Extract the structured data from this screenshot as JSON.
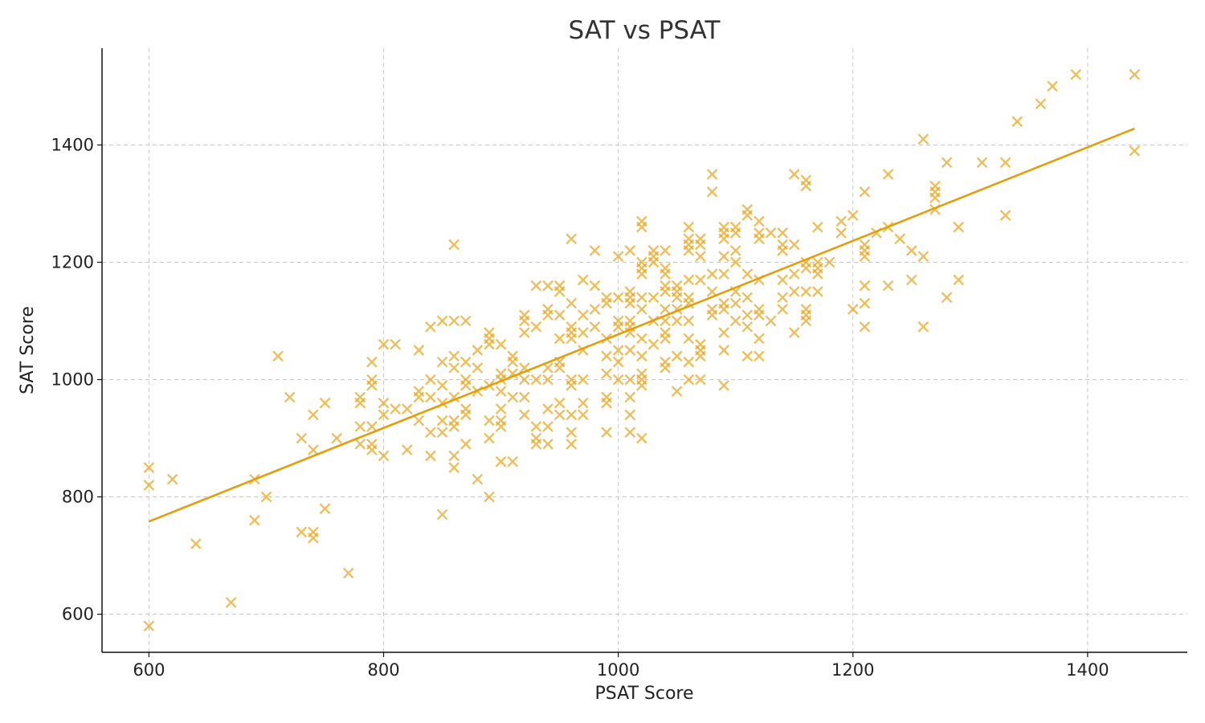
{
  "chart_data": {
    "type": "scatter",
    "title": "SAT vs PSAT",
    "xlabel": "PSAT Score",
    "ylabel": "SAT Score",
    "xlim": [
      560,
      1485
    ],
    "ylim": [
      535,
      1565
    ],
    "xticks": [
      600,
      800,
      1000,
      1200,
      1400
    ],
    "yticks": [
      600,
      800,
      1000,
      1200,
      1400
    ],
    "grid": true,
    "marker": "x",
    "point_color": "#E8A317",
    "line_color": "#E39E0C",
    "trendline": {
      "x": [
        600,
        1440
      ],
      "y": [
        758,
        1428
      ]
    },
    "points": [
      [
        600,
        850
      ],
      [
        600,
        820
      ],
      [
        600,
        580
      ],
      [
        620,
        830
      ],
      [
        640,
        720
      ],
      [
        670,
        620
      ],
      [
        690,
        830
      ],
      [
        690,
        760
      ],
      [
        700,
        800
      ],
      [
        710,
        1040
      ],
      [
        720,
        970
      ],
      [
        730,
        900
      ],
      [
        730,
        740
      ],
      [
        740,
        940
      ],
      [
        740,
        880
      ],
      [
        740,
        740
      ],
      [
        740,
        730
      ],
      [
        750,
        960
      ],
      [
        750,
        780
      ],
      [
        760,
        900
      ],
      [
        770,
        670
      ],
      [
        780,
        970
      ],
      [
        780,
        960
      ],
      [
        780,
        920
      ],
      [
        780,
        890
      ],
      [
        790,
        1030
      ],
      [
        790,
        1000
      ],
      [
        790,
        990
      ],
      [
        790,
        920
      ],
      [
        790,
        890
      ],
      [
        790,
        880
      ],
      [
        800,
        1060
      ],
      [
        800,
        960
      ],
      [
        800,
        940
      ],
      [
        800,
        870
      ],
      [
        810,
        1060
      ],
      [
        810,
        950
      ],
      [
        820,
        950
      ],
      [
        820,
        880
      ],
      [
        830,
        1050
      ],
      [
        830,
        980
      ],
      [
        830,
        970
      ],
      [
        830,
        930
      ],
      [
        840,
        1090
      ],
      [
        840,
        1000
      ],
      [
        840,
        970
      ],
      [
        840,
        910
      ],
      [
        840,
        870
      ],
      [
        850,
        1100
      ],
      [
        850,
        1030
      ],
      [
        850,
        990
      ],
      [
        850,
        960
      ],
      [
        850,
        930
      ],
      [
        850,
        910
      ],
      [
        850,
        770
      ],
      [
        860,
        1230
      ],
      [
        860,
        1100
      ],
      [
        860,
        1040
      ],
      [
        860,
        1020
      ],
      [
        860,
        970
      ],
      [
        860,
        930
      ],
      [
        860,
        920
      ],
      [
        860,
        870
      ],
      [
        860,
        850
      ],
      [
        870,
        1100
      ],
      [
        870,
        1030
      ],
      [
        870,
        1000
      ],
      [
        870,
        990
      ],
      [
        870,
        950
      ],
      [
        870,
        940
      ],
      [
        870,
        890
      ],
      [
        880,
        1050
      ],
      [
        880,
        1020
      ],
      [
        880,
        980
      ],
      [
        880,
        830
      ],
      [
        890,
        1080
      ],
      [
        890,
        1070
      ],
      [
        890,
        1060
      ],
      [
        890,
        990
      ],
      [
        890,
        930
      ],
      [
        890,
        900
      ],
      [
        890,
        800
      ],
      [
        900,
        1060
      ],
      [
        900,
        1010
      ],
      [
        900,
        1000
      ],
      [
        900,
        980
      ],
      [
        900,
        950
      ],
      [
        900,
        930
      ],
      [
        900,
        920
      ],
      [
        900,
        860
      ],
      [
        910,
        1040
      ],
      [
        910,
        1030
      ],
      [
        910,
        1010
      ],
      [
        910,
        970
      ],
      [
        910,
        860
      ],
      [
        920,
        1110
      ],
      [
        920,
        1100
      ],
      [
        920,
        1080
      ],
      [
        920,
        1020
      ],
      [
        920,
        1000
      ],
      [
        920,
        970
      ],
      [
        920,
        940
      ],
      [
        930,
        1160
      ],
      [
        930,
        1090
      ],
      [
        930,
        1000
      ],
      [
        930,
        920
      ],
      [
        930,
        900
      ],
      [
        930,
        890
      ],
      [
        940,
        1160
      ],
      [
        940,
        1120
      ],
      [
        940,
        1110
      ],
      [
        940,
        1020
      ],
      [
        940,
        1000
      ],
      [
        940,
        950
      ],
      [
        940,
        920
      ],
      [
        940,
        890
      ],
      [
        950,
        1160
      ],
      [
        950,
        1150
      ],
      [
        950,
        1110
      ],
      [
        950,
        1070
      ],
      [
        950,
        1030
      ],
      [
        950,
        1020
      ],
      [
        950,
        960
      ],
      [
        950,
        940
      ],
      [
        960,
        1240
      ],
      [
        960,
        1130
      ],
      [
        960,
        1090
      ],
      [
        960,
        1080
      ],
      [
        960,
        1070
      ],
      [
        960,
        1000
      ],
      [
        960,
        990
      ],
      [
        960,
        940
      ],
      [
        960,
        910
      ],
      [
        960,
        890
      ],
      [
        970,
        1170
      ],
      [
        970,
        1110
      ],
      [
        970,
        1080
      ],
      [
        970,
        1050
      ],
      [
        970,
        1000
      ],
      [
        970,
        960
      ],
      [
        970,
        940
      ],
      [
        980,
        1220
      ],
      [
        980,
        1160
      ],
      [
        980,
        1120
      ],
      [
        980,
        1090
      ],
      [
        990,
        1140
      ],
      [
        990,
        1130
      ],
      [
        990,
        1070
      ],
      [
        990,
        1040
      ],
      [
        990,
        1010
      ],
      [
        990,
        970
      ],
      [
        990,
        960
      ],
      [
        990,
        910
      ],
      [
        1000,
        1210
      ],
      [
        1000,
        1140
      ],
      [
        1000,
        1100
      ],
      [
        1000,
        1090
      ],
      [
        1000,
        1050
      ],
      [
        1000,
        1030
      ],
      [
        1000,
        1000
      ],
      [
        1010,
        1220
      ],
      [
        1010,
        1150
      ],
      [
        1010,
        1140
      ],
      [
        1010,
        1130
      ],
      [
        1010,
        1100
      ],
      [
        1010,
        1090
      ],
      [
        1010,
        1080
      ],
      [
        1010,
        1050
      ],
      [
        1010,
        1000
      ],
      [
        1010,
        970
      ],
      [
        1010,
        940
      ],
      [
        1010,
        910
      ],
      [
        1020,
        1270
      ],
      [
        1020,
        1260
      ],
      [
        1020,
        1200
      ],
      [
        1020,
        1190
      ],
      [
        1020,
        1180
      ],
      [
        1020,
        1140
      ],
      [
        1020,
        1120
      ],
      [
        1020,
        1070
      ],
      [
        1020,
        1040
      ],
      [
        1020,
        1010
      ],
      [
        1020,
        1000
      ],
      [
        1020,
        990
      ],
      [
        1020,
        900
      ],
      [
        1030,
        1220
      ],
      [
        1030,
        1210
      ],
      [
        1030,
        1200
      ],
      [
        1030,
        1140
      ],
      [
        1030,
        1100
      ],
      [
        1030,
        1060
      ],
      [
        1040,
        1220
      ],
      [
        1040,
        1190
      ],
      [
        1040,
        1180
      ],
      [
        1040,
        1160
      ],
      [
        1040,
        1150
      ],
      [
        1040,
        1120
      ],
      [
        1040,
        1100
      ],
      [
        1040,
        1080
      ],
      [
        1040,
        1070
      ],
      [
        1040,
        1030
      ],
      [
        1040,
        1020
      ],
      [
        1050,
        1160
      ],
      [
        1050,
        1150
      ],
      [
        1050,
        1140
      ],
      [
        1050,
        1120
      ],
      [
        1050,
        1100
      ],
      [
        1050,
        1040
      ],
      [
        1050,
        980
      ],
      [
        1060,
        1260
      ],
      [
        1060,
        1240
      ],
      [
        1060,
        1230
      ],
      [
        1060,
        1220
      ],
      [
        1060,
        1170
      ],
      [
        1060,
        1140
      ],
      [
        1060,
        1130
      ],
      [
        1060,
        1100
      ],
      [
        1060,
        1070
      ],
      [
        1060,
        1030
      ],
      [
        1060,
        1000
      ],
      [
        1070,
        1240
      ],
      [
        1070,
        1230
      ],
      [
        1070,
        1210
      ],
      [
        1070,
        1170
      ],
      [
        1070,
        1060
      ],
      [
        1070,
        1050
      ],
      [
        1070,
        1040
      ],
      [
        1070,
        1000
      ],
      [
        1080,
        1350
      ],
      [
        1080,
        1320
      ],
      [
        1080,
        1180
      ],
      [
        1080,
        1150
      ],
      [
        1080,
        1120
      ],
      [
        1080,
        1110
      ],
      [
        1090,
        1260
      ],
      [
        1090,
        1250
      ],
      [
        1090,
        1240
      ],
      [
        1090,
        1210
      ],
      [
        1090,
        1180
      ],
      [
        1090,
        1130
      ],
      [
        1090,
        1120
      ],
      [
        1090,
        1080
      ],
      [
        1090,
        1050
      ],
      [
        1090,
        990
      ],
      [
        1100,
        1260
      ],
      [
        1100,
        1250
      ],
      [
        1100,
        1220
      ],
      [
        1100,
        1200
      ],
      [
        1100,
        1150
      ],
      [
        1100,
        1130
      ],
      [
        1100,
        1100
      ],
      [
        1110,
        1290
      ],
      [
        1110,
        1280
      ],
      [
        1110,
        1180
      ],
      [
        1110,
        1140
      ],
      [
        1110,
        1110
      ],
      [
        1110,
        1090
      ],
      [
        1110,
        1040
      ],
      [
        1120,
        1270
      ],
      [
        1120,
        1250
      ],
      [
        1120,
        1240
      ],
      [
        1120,
        1170
      ],
      [
        1120,
        1120
      ],
      [
        1120,
        1110
      ],
      [
        1120,
        1070
      ],
      [
        1120,
        1040
      ],
      [
        1130,
        1250
      ],
      [
        1130,
        1100
      ],
      [
        1140,
        1250
      ],
      [
        1140,
        1230
      ],
      [
        1140,
        1220
      ],
      [
        1140,
        1170
      ],
      [
        1140,
        1140
      ],
      [
        1140,
        1120
      ],
      [
        1150,
        1350
      ],
      [
        1150,
        1230
      ],
      [
        1150,
        1180
      ],
      [
        1150,
        1150
      ],
      [
        1150,
        1080
      ],
      [
        1160,
        1340
      ],
      [
        1160,
        1330
      ],
      [
        1160,
        1200
      ],
      [
        1160,
        1190
      ],
      [
        1160,
        1150
      ],
      [
        1160,
        1120
      ],
      [
        1160,
        1110
      ],
      [
        1160,
        1100
      ],
      [
        1170,
        1260
      ],
      [
        1170,
        1200
      ],
      [
        1170,
        1190
      ],
      [
        1170,
        1180
      ],
      [
        1170,
        1150
      ],
      [
        1180,
        1200
      ],
      [
        1190,
        1270
      ],
      [
        1190,
        1250
      ],
      [
        1200,
        1280
      ],
      [
        1200,
        1120
      ],
      [
        1210,
        1320
      ],
      [
        1210,
        1230
      ],
      [
        1210,
        1220
      ],
      [
        1210,
        1210
      ],
      [
        1210,
        1160
      ],
      [
        1210,
        1130
      ],
      [
        1210,
        1090
      ],
      [
        1220,
        1250
      ],
      [
        1230,
        1350
      ],
      [
        1230,
        1260
      ],
      [
        1230,
        1160
      ],
      [
        1240,
        1240
      ],
      [
        1250,
        1220
      ],
      [
        1250,
        1170
      ],
      [
        1260,
        1410
      ],
      [
        1260,
        1210
      ],
      [
        1260,
        1090
      ],
      [
        1270,
        1330
      ],
      [
        1270,
        1320
      ],
      [
        1270,
        1310
      ],
      [
        1270,
        1290
      ],
      [
        1280,
        1370
      ],
      [
        1280,
        1140
      ],
      [
        1290,
        1260
      ],
      [
        1290,
        1170
      ],
      [
        1310,
        1370
      ],
      [
        1330,
        1370
      ],
      [
        1330,
        1280
      ],
      [
        1340,
        1440
      ],
      [
        1360,
        1470
      ],
      [
        1370,
        1500
      ],
      [
        1390,
        1520
      ],
      [
        1440,
        1520
      ],
      [
        1440,
        1390
      ]
    ]
  }
}
